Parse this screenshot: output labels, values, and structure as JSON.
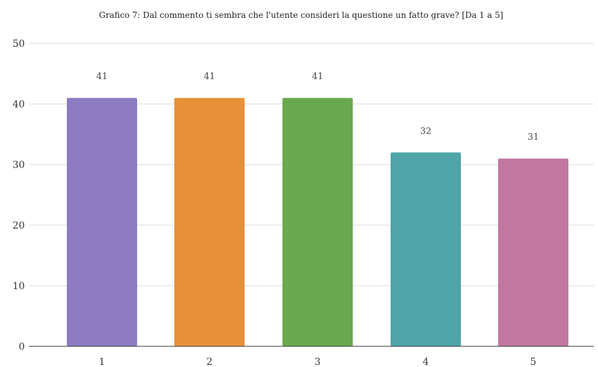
{
  "chart_data": {
    "type": "bar",
    "title": "Grafico 7: Dal commento ti sembra che l'utente consideri la questione un fatto grave? [Da 1 a 5]",
    "categories": [
      "1",
      "2",
      "3",
      "4",
      "5"
    ],
    "values": [
      41,
      41,
      41,
      32,
      31
    ],
    "data_labels": [
      "41",
      "41",
      "41",
      "32",
      "31"
    ],
    "colors": [
      "#8c7bc1",
      "#e69138",
      "#6aa84f",
      "#4fa5a8",
      "#c2789f"
    ],
    "ylim": [
      0,
      50
    ],
    "yticks": [
      "0",
      "10",
      "20",
      "30",
      "40",
      "50"
    ],
    "xlabel": "",
    "ylabel": "",
    "grid": true,
    "legend": "none"
  }
}
